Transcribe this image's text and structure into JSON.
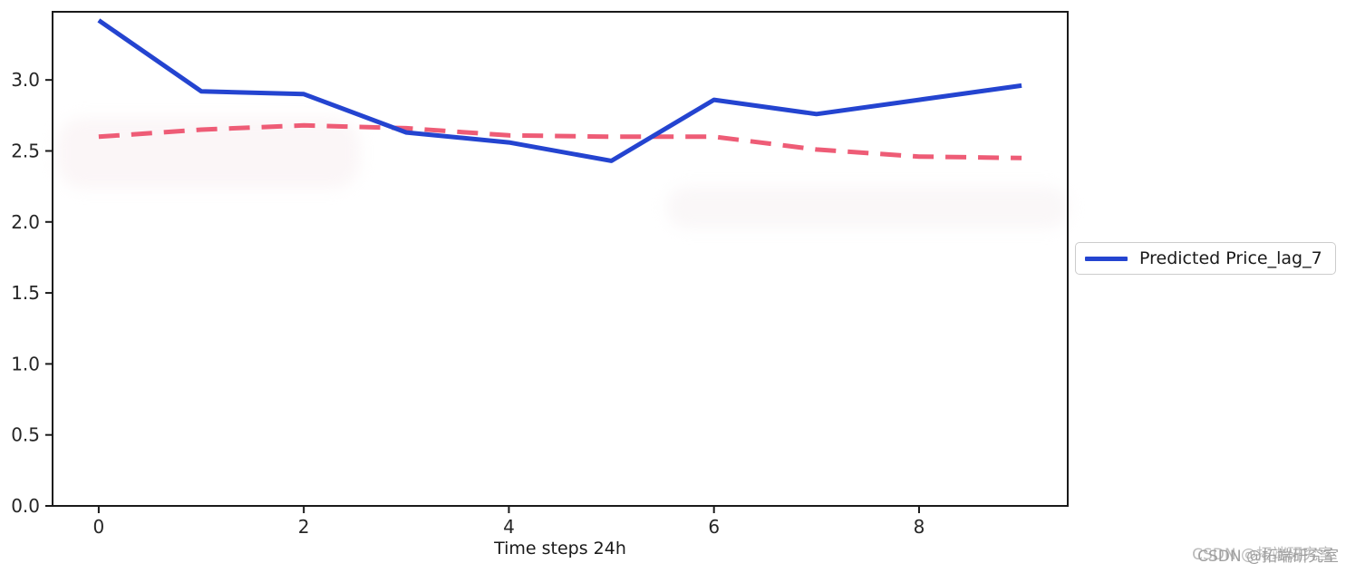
{
  "chart_data": {
    "type": "line",
    "x": [
      0,
      1,
      2,
      3,
      4,
      5,
      6,
      7,
      8,
      9
    ],
    "series": [
      {
        "name": "",
        "values": [
          2.6,
          2.65,
          2.68,
          2.66,
          2.61,
          2.6,
          2.6,
          2.51,
          2.46,
          2.45
        ],
        "color": "#ee5c76",
        "style": "dashed",
        "in_legend": false
      },
      {
        "name": "Predicted Price_lag_7",
        "values": [
          3.42,
          2.92,
          2.9,
          2.63,
          2.56,
          2.43,
          2.86,
          2.76,
          2.86,
          2.96
        ],
        "color": "#2444d0",
        "style": "solid",
        "in_legend": true
      }
    ],
    "title": "",
    "xlabel": "Time steps 24h",
    "ylabel": "",
    "x_ticks": [
      "0",
      "2",
      "4",
      "6",
      "8"
    ],
    "y_ticks": [
      "0.0",
      "0.5",
      "1.0",
      "1.5",
      "2.0",
      "2.5",
      "3.0"
    ],
    "xlim": [
      -0.45,
      9.45
    ],
    "ylim": [
      0,
      3.48
    ],
    "grid": false,
    "legend_position": "outside-right",
    "spine_color": "#1a1a1a",
    "tick_label_color": "#262626"
  },
  "legend": {
    "label": "Predicted Price_lag_7",
    "line_color": "#2444d0"
  },
  "xlabel": "Time steps 24h",
  "watermark": {
    "text": "CSDN @拓端研究室"
  }
}
